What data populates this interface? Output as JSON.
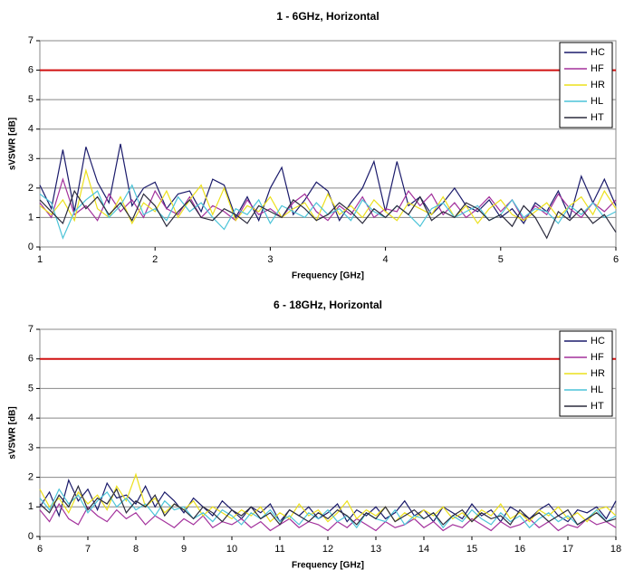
{
  "chart_data": [
    {
      "type": "line",
      "title": "1 - 6GHz, Horizontal",
      "x_label": "Frequency [GHz]",
      "y_label": "sVSWR [dB]",
      "x": [
        1,
        1.1,
        1.2,
        1.3,
        1.4,
        1.5,
        1.6,
        1.7,
        1.8,
        1.9,
        2,
        2.1,
        2.2,
        2.3,
        2.4,
        2.5,
        2.6,
        2.7,
        2.8,
        2.9,
        3,
        3.1,
        3.2,
        3.3,
        3.4,
        3.5,
        3.6,
        3.7,
        3.8,
        3.9,
        4,
        4.1,
        4.2,
        4.3,
        4.4,
        4.5,
        4.6,
        4.7,
        4.8,
        4.9,
        5,
        5.1,
        5.2,
        5.3,
        5.4,
        5.5,
        5.6,
        5.7,
        5.8,
        5.9,
        6
      ],
      "xlim": [
        1,
        6
      ],
      "xticks": [
        1,
        2,
        3,
        4,
        5,
        6
      ],
      "ylim": [
        0,
        7
      ],
      "yticks": [
        0,
        1,
        2,
        3,
        4,
        5,
        6,
        7
      ],
      "grid": true,
      "legend": "upper right",
      "reference_line": {
        "value": 6,
        "color": "#d01010"
      },
      "series": [
        {
          "name": "HC",
          "color": "#1b1b6b",
          "values": [
            2.1,
            1.3,
            3.3,
            1.2,
            3.4,
            2.2,
            1.5,
            3.5,
            1.4,
            2.0,
            2.2,
            1.3,
            1.8,
            1.9,
            1.2,
            2.3,
            2.1,
            1.0,
            1.7,
            0.9,
            2.0,
            2.7,
            1.1,
            1.6,
            2.2,
            1.9,
            0.9,
            1.5,
            2.0,
            2.9,
            1.2,
            2.9,
            1.4,
            1.7,
            1.1,
            1.5,
            2.0,
            1.4,
            1.2,
            1.6,
            1.0,
            1.3,
            0.8,
            1.5,
            1.2,
            1.9,
            1.0,
            2.4,
            1.5,
            2.3,
            1.4
          ]
        },
        {
          "name": "HF",
          "color": "#a3319c",
          "values": [
            1.5,
            1.0,
            2.3,
            1.1,
            1.4,
            0.9,
            1.8,
            1.2,
            1.6,
            1.0,
            1.9,
            1.3,
            1.1,
            1.7,
            1.0,
            1.4,
            1.2,
            0.9,
            1.6,
            1.1,
            1.3,
            1.0,
            1.5,
            1.8,
            1.2,
            0.9,
            1.4,
            1.1,
            1.7,
            1.0,
            1.3,
            1.2,
            1.9,
            1.4,
            1.8,
            1.1,
            1.5,
            1.0,
            1.3,
            1.7,
            1.2,
            1.6,
            0.9,
            1.4,
            1.1,
            1.8,
            1.3,
            1.0,
            1.5,
            1.2,
            1.6
          ]
        },
        {
          "name": "HR",
          "color": "#ece01c",
          "values": [
            1.4,
            1.1,
            1.6,
            0.9,
            2.6,
            1.3,
            1.0,
            1.7,
            0.8,
            1.5,
            1.2,
            1.9,
            1.0,
            1.6,
            2.1,
            1.1,
            2.0,
            0.9,
            1.4,
            1.2,
            1.7,
            1.0,
            1.3,
            1.5,
            0.9,
            1.8,
            1.1,
            1.4,
            1.0,
            1.6,
            1.2,
            0.9,
            1.5,
            1.3,
            1.1,
            1.7,
            1.0,
            1.4,
            0.8,
            1.3,
            1.6,
            1.1,
            0.9,
            1.2,
            1.5,
            1.0,
            1.4,
            1.7,
            1.1,
            1.9,
            1.3
          ]
        },
        {
          "name": "HL",
          "color": "#4cc4d8",
          "values": [
            1.8,
            1.5,
            0.3,
            1.2,
            1.6,
            1.9,
            1.0,
            1.4,
            2.1,
            1.1,
            1.3,
            0.9,
            1.7,
            1.2,
            1.5,
            1.0,
            0.6,
            1.3,
            1.1,
            1.6,
            0.8,
            1.4,
            1.2,
            1.0,
            1.5,
            1.1,
            1.3,
            0.9,
            1.6,
            1.2,
            1.0,
            1.4,
            1.1,
            0.7,
            1.3,
            1.5,
            1.0,
            1.2,
            1.4,
            0.9,
            1.1,
            1.6,
            1.0,
            1.3,
            1.2,
            0.8,
            1.4,
            1.1,
            1.5,
            1.0,
            1.2
          ]
        },
        {
          "name": "HT",
          "color": "#2b2b3d",
          "values": [
            1.6,
            1.2,
            0.8,
            1.9,
            1.3,
            1.7,
            1.1,
            1.5,
            0.9,
            1.8,
            1.4,
            0.7,
            1.2,
            1.6,
            1.0,
            0.9,
            1.3,
            1.1,
            0.8,
            1.4,
            1.2,
            1.0,
            1.6,
            1.3,
            0.9,
            1.1,
            1.5,
            1.2,
            0.8,
            1.3,
            1.0,
            1.4,
            1.1,
            1.7,
            0.9,
            1.2,
            1.0,
            1.5,
            1.3,
            0.9,
            1.1,
            0.7,
            1.4,
            1.0,
            0.3,
            1.2,
            0.9,
            1.3,
            0.8,
            1.1,
            0.5
          ]
        }
      ]
    },
    {
      "type": "line",
      "title": "6 - 18GHz, Horizontal",
      "x_label": "Frequency [GHz]",
      "y_label": "sVSWR [dB]",
      "x": [
        6,
        6.2,
        6.4,
        6.6,
        6.8,
        7,
        7.2,
        7.4,
        7.6,
        7.8,
        8,
        8.2,
        8.4,
        8.6,
        8.8,
        9,
        9.2,
        9.4,
        9.6,
        9.8,
        10,
        10.2,
        10.4,
        10.6,
        10.8,
        11,
        11.2,
        11.4,
        11.6,
        11.8,
        12,
        12.2,
        12.4,
        12.6,
        12.8,
        13,
        13.2,
        13.4,
        13.6,
        13.8,
        14,
        14.2,
        14.4,
        14.6,
        14.8,
        15,
        15.2,
        15.4,
        15.6,
        15.8,
        16,
        16.2,
        16.4,
        16.6,
        16.8,
        17,
        17.2,
        17.4,
        17.6,
        17.8,
        18
      ],
      "xlim": [
        6,
        18
      ],
      "xticks": [
        6,
        7,
        8,
        9,
        10,
        11,
        12,
        13,
        14,
        15,
        16,
        17,
        18
      ],
      "ylim": [
        0,
        7
      ],
      "yticks": [
        0,
        1,
        2,
        3,
        4,
        5,
        6,
        7
      ],
      "grid": true,
      "legend": "upper right",
      "reference_line": {
        "value": 6,
        "color": "#d01010"
      },
      "series": [
        {
          "name": "HC",
          "color": "#1b1b6b",
          "values": [
            1.0,
            1.5,
            0.7,
            1.9,
            1.2,
            1.6,
            0.9,
            1.8,
            1.3,
            1.4,
            1.1,
            1.7,
            1.0,
            1.5,
            1.2,
            0.8,
            1.3,
            1.0,
            0.7,
            1.2,
            0.9,
            0.6,
            1.0,
            0.8,
            1.1,
            0.5,
            0.9,
            0.7,
            1.0,
            0.6,
            0.8,
            1.1,
            0.5,
            0.9,
            0.7,
            1.0,
            0.6,
            0.8,
            1.2,
            0.7,
            0.9,
            0.5,
            1.0,
            0.8,
            0.6,
            1.1,
            0.7,
            0.9,
            0.5,
            1.0,
            0.8,
            0.6,
            0.9,
            1.1,
            0.7,
            0.5,
            0.9,
            0.8,
            1.0,
            0.6,
            1.2
          ]
        },
        {
          "name": "HF",
          "color": "#a3319c",
          "values": [
            0.9,
            0.5,
            1.1,
            0.6,
            0.4,
            1.0,
            0.7,
            0.5,
            0.9,
            0.6,
            0.8,
            0.4,
            0.7,
            0.5,
            0.3,
            0.6,
            0.4,
            0.7,
            0.3,
            0.5,
            0.4,
            0.6,
            0.3,
            0.5,
            0.2,
            0.4,
            0.6,
            0.3,
            0.5,
            0.4,
            0.2,
            0.5,
            0.3,
            0.6,
            0.4,
            0.2,
            0.5,
            0.3,
            0.4,
            0.6,
            0.3,
            0.5,
            0.2,
            0.4,
            0.3,
            0.6,
            0.4,
            0.2,
            0.5,
            0.3,
            0.4,
            0.6,
            0.3,
            0.5,
            0.2,
            0.4,
            0.3,
            0.6,
            0.4,
            0.5,
            0.3
          ]
        },
        {
          "name": "HR",
          "color": "#ece01c",
          "values": [
            1.6,
            1.0,
            1.3,
            0.8,
            1.5,
            1.1,
            1.4,
            0.9,
            1.7,
            1.2,
            2.1,
            1.0,
            1.3,
            0.8,
            1.1,
            0.9,
            1.2,
            0.7,
            1.0,
            0.8,
            0.6,
            0.9,
            0.7,
            1.0,
            0.5,
            0.8,
            0.6,
            1.1,
            0.7,
            0.9,
            0.5,
            0.8,
            1.2,
            0.6,
            0.9,
            0.7,
            1.0,
            0.5,
            0.8,
            0.6,
            0.9,
            0.7,
            1.0,
            0.6,
            0.8,
            0.5,
            0.9,
            0.7,
            1.1,
            0.6,
            0.8,
            0.5,
            0.9,
            0.7,
            1.0,
            0.6,
            0.8,
            0.5,
            0.9,
            1.0,
            0.7
          ]
        },
        {
          "name": "HL",
          "color": "#4cc4d8",
          "values": [
            1.3,
            0.9,
            1.6,
            1.1,
            1.4,
            0.8,
            1.2,
            1.5,
            1.0,
            1.3,
            0.9,
            1.1,
            0.7,
            1.2,
            0.9,
            1.0,
            0.6,
            0.8,
            0.5,
            0.9,
            0.7,
            0.4,
            0.8,
            0.6,
            0.9,
            0.5,
            0.7,
            0.4,
            0.8,
            0.6,
            0.9,
            0.5,
            0.7,
            0.3,
            0.8,
            0.6,
            0.5,
            0.9,
            0.4,
            0.7,
            0.6,
            0.8,
            0.3,
            0.7,
            0.5,
            0.9,
            0.6,
            0.4,
            0.8,
            0.5,
            0.7,
            0.3,
            0.6,
            0.8,
            0.5,
            0.7,
            0.4,
            0.6,
            0.9,
            0.5,
            0.7
          ]
        },
        {
          "name": "HT",
          "color": "#2b2b3d",
          "values": [
            1.1,
            0.8,
            1.4,
            1.0,
            1.7,
            0.9,
            1.3,
            1.1,
            1.6,
            0.8,
            1.2,
            1.0,
            1.4,
            0.7,
            1.1,
            0.9,
            0.6,
            1.0,
            0.8,
            0.5,
            0.9,
            0.7,
            1.0,
            0.6,
            0.8,
            0.4,
            0.9,
            0.7,
            0.5,
            0.8,
            0.6,
            0.9,
            0.7,
            0.4,
            0.8,
            0.6,
            1.0,
            0.5,
            0.7,
            0.9,
            0.6,
            0.8,
            0.4,
            0.7,
            0.9,
            0.5,
            0.8,
            0.6,
            0.7,
            0.4,
            0.9,
            0.6,
            0.8,
            0.5,
            0.7,
            0.9,
            0.4,
            0.6,
            0.8,
            0.5,
            0.6
          ]
        }
      ]
    }
  ]
}
